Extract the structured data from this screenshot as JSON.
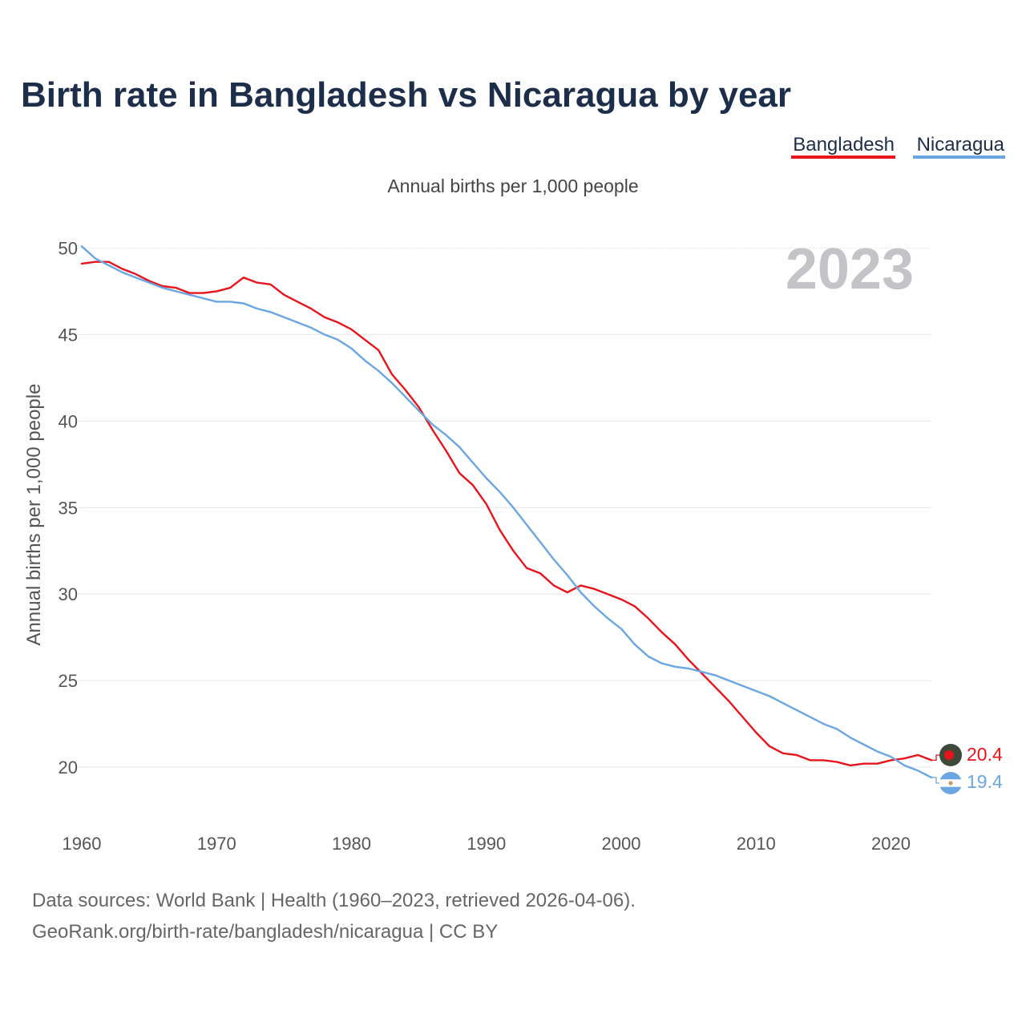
{
  "colors": {
    "title": "#1c2e4a",
    "bangladesh": "#e8141c",
    "nicaragua": "#6aa6e2",
    "year_label": "#c4c4c8",
    "grid": "#e6e6e6",
    "axis_text": "#555555"
  },
  "chart_data": {
    "type": "line",
    "title": "Birth rate in Bangladesh vs Nicaragua by year",
    "subtitle": "Annual births per 1,000 people",
    "ylabel": "Annual births per 1,000 people",
    "xlabel": "",
    "year_label": "2023",
    "xlim": [
      1960,
      2023
    ],
    "ylim": [
      17.5,
      50.3
    ],
    "x_ticks": [
      1960,
      1970,
      1980,
      1990,
      2000,
      2010,
      2020
    ],
    "y_ticks": [
      20,
      25,
      30,
      35,
      40,
      45,
      50
    ],
    "legend_position": "top-right",
    "x": [
      1960,
      1961,
      1962,
      1963,
      1964,
      1965,
      1966,
      1967,
      1968,
      1969,
      1970,
      1971,
      1972,
      1973,
      1974,
      1975,
      1976,
      1977,
      1978,
      1979,
      1980,
      1981,
      1982,
      1983,
      1984,
      1985,
      1986,
      1987,
      1988,
      1989,
      1990,
      1991,
      1992,
      1993,
      1994,
      1995,
      1996,
      1997,
      1998,
      1999,
      2000,
      2001,
      2002,
      2003,
      2004,
      2005,
      2006,
      2007,
      2008,
      2009,
      2010,
      2011,
      2012,
      2013,
      2014,
      2015,
      2016,
      2017,
      2018,
      2019,
      2020,
      2021,
      2022,
      2023
    ],
    "series": [
      {
        "name": "Bangladesh",
        "color": "#e8141c",
        "end_label": "20.4",
        "values": [
          49.1,
          49.2,
          49.2,
          48.8,
          48.5,
          48.1,
          47.8,
          47.7,
          47.4,
          47.4,
          47.5,
          47.7,
          48.3,
          48.0,
          47.9,
          47.3,
          46.9,
          46.5,
          46.0,
          45.7,
          45.3,
          44.7,
          44.1,
          42.7,
          41.8,
          40.8,
          39.5,
          38.3,
          37.0,
          36.3,
          35.2,
          33.7,
          32.5,
          31.5,
          31.2,
          30.5,
          30.1,
          30.5,
          30.3,
          30.0,
          29.7,
          29.3,
          28.6,
          27.8,
          27.1,
          26.2,
          25.4,
          24.6,
          23.8,
          22.9,
          22.0,
          21.2,
          20.8,
          20.7,
          20.4,
          20.4,
          20.3,
          20.1,
          20.2,
          20.2,
          20.4,
          20.5,
          20.7,
          20.4
        ]
      },
      {
        "name": "Nicaragua",
        "color": "#6aa6e2",
        "end_label": "19.4",
        "values": [
          50.1,
          49.4,
          49.0,
          48.6,
          48.3,
          48.0,
          47.7,
          47.5,
          47.3,
          47.1,
          46.9,
          46.9,
          46.8,
          46.5,
          46.3,
          46.0,
          45.7,
          45.4,
          45.0,
          44.7,
          44.2,
          43.5,
          42.9,
          42.2,
          41.4,
          40.6,
          39.8,
          39.2,
          38.5,
          37.6,
          36.7,
          35.9,
          35.0,
          34.0,
          33.0,
          32.0,
          31.1,
          30.1,
          29.3,
          28.6,
          28.0,
          27.1,
          26.4,
          26.0,
          25.8,
          25.7,
          25.5,
          25.3,
          25.0,
          24.7,
          24.4,
          24.1,
          23.7,
          23.3,
          22.9,
          22.5,
          22.2,
          21.7,
          21.3,
          20.9,
          20.6,
          20.1,
          19.8,
          19.4
        ]
      }
    ]
  },
  "footer": {
    "source_line": "Data sources: World Bank | Health (1960–2023, retrieved 2026-04-06).",
    "site_line": "GeoRank.org/birth-rate/bangladesh/nicaragua | CC BY"
  }
}
